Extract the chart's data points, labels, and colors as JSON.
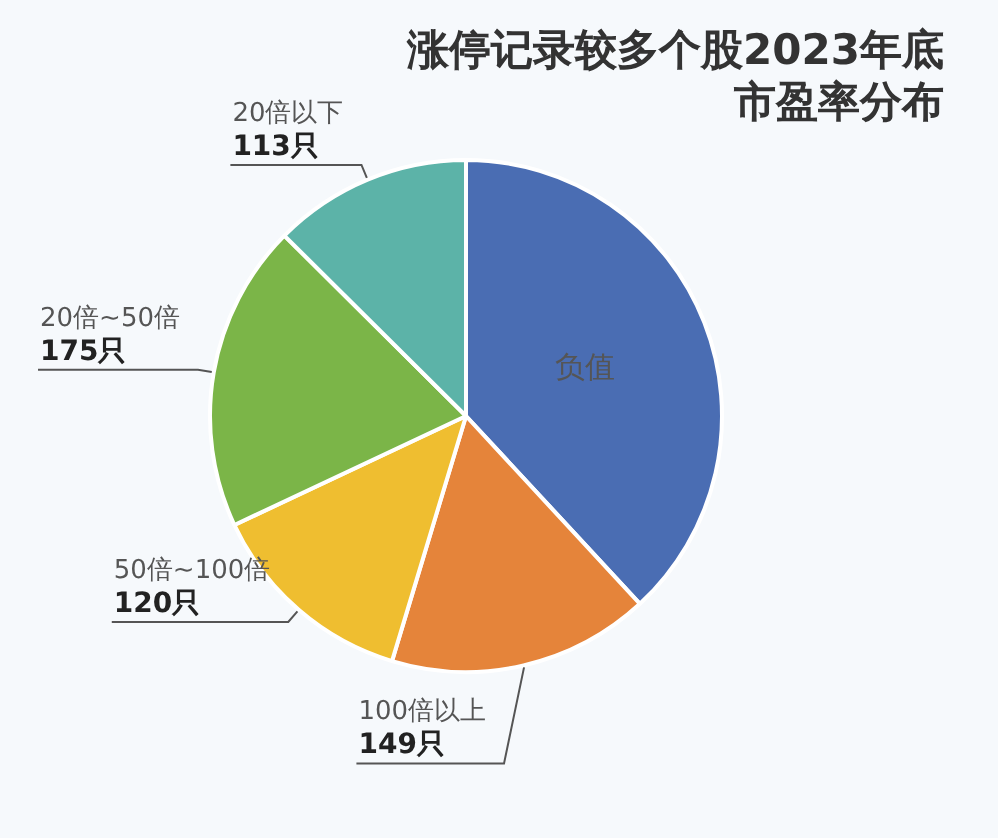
{
  "chart_data": {
    "type": "pie",
    "title": "涨停记录较多个股2023年底市盈率分布",
    "categories": [
      "负值",
      "100倍以上",
      "50倍~100倍",
      "20倍~50倍",
      "20倍以下"
    ],
    "values": [
      343,
      149,
      120,
      175,
      113
    ],
    "colors": [
      "#4a6db3",
      "#e5843a",
      "#efbe30",
      "#7bb548",
      "#5cb3a8"
    ],
    "value_labels": [
      null,
      "149只",
      "120只",
      "175只",
      "113只"
    ]
  }
}
